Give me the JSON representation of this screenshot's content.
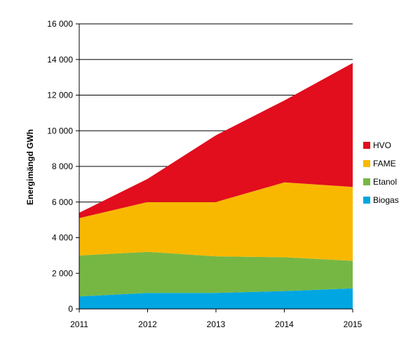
{
  "chart_data": {
    "type": "area",
    "stacked": true,
    "x": [
      2011,
      2012,
      2013,
      2014,
      2015
    ],
    "x_tick_labels": [
      "2011",
      "2012",
      "2013",
      "2014",
      "2015"
    ],
    "ylabel": "Energimängd GWh",
    "ylim": [
      0,
      16000
    ],
    "y_ticks": [
      0,
      2000,
      4000,
      6000,
      8000,
      10000,
      12000,
      14000,
      16000
    ],
    "y_tick_labels": [
      "0",
      "2 000",
      "4 000",
      "6 000",
      "8 000",
      "10 000",
      "12 000",
      "14 000",
      "16 000"
    ],
    "grid": true,
    "legend_position": "right",
    "series": [
      {
        "name": "Biogas",
        "color": "#00a6e2",
        "values": [
          700,
          900,
          900,
          1000,
          1150
        ]
      },
      {
        "name": "Etanol",
        "color": "#76b744",
        "values": [
          2300,
          2300,
          2050,
          1900,
          1550
        ]
      },
      {
        "name": "FAME",
        "color": "#f9b800",
        "values": [
          2100,
          2800,
          3050,
          4200,
          4150
        ]
      },
      {
        "name": "HVO",
        "color": "#e20d1d",
        "values": [
          300,
          1300,
          3750,
          4600,
          6950
        ]
      }
    ],
    "legend_order": [
      "HVO",
      "FAME",
      "Etanol",
      "Biogas"
    ]
  }
}
